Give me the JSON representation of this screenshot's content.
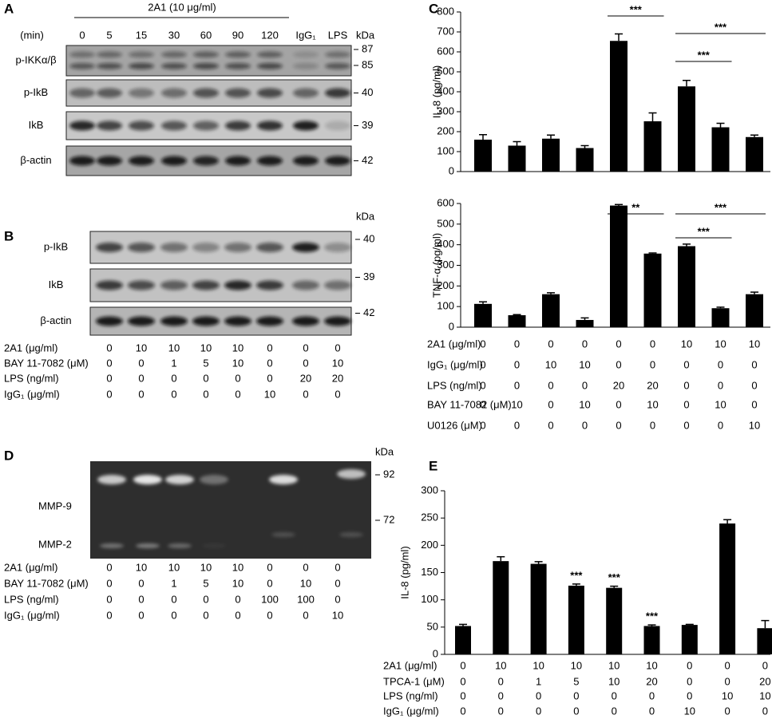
{
  "panel_a": {
    "label": "A",
    "header": "2A1 (10 μg/ml)",
    "time_label": "(min)",
    "lanes": [
      "0",
      "5",
      "15",
      "30",
      "60",
      "90",
      "120",
      "IgG₁",
      "LPS"
    ],
    "kda": "kDa",
    "rows": [
      {
        "name": "p-IKKα/β",
        "markers": [
          "87",
          "85"
        ]
      },
      {
        "name": "p-IkB",
        "markers": [
          "40"
        ]
      },
      {
        "name": "IkB",
        "markers": [
          "39"
        ]
      },
      {
        "name": "β-actin",
        "markers": [
          "42"
        ]
      }
    ]
  },
  "panel_b": {
    "label": "B",
    "kda": "kDa",
    "rows": [
      {
        "name": "p-IkB",
        "markers": [
          "40"
        ]
      },
      {
        "name": "IkB",
        "markers": [
          "39"
        ]
      },
      {
        "name": "β-actin",
        "markers": [
          "42"
        ]
      }
    ],
    "conditions": [
      {
        "name": "2A1 (μg/ml)",
        "values": [
          0,
          10,
          10,
          10,
          10,
          0,
          0,
          0
        ]
      },
      {
        "name": "BAY 11-7082 (μM)",
        "values": [
          0,
          0,
          1,
          5,
          10,
          0,
          0,
          10
        ]
      },
      {
        "name": "LPS (ng/ml)",
        "values": [
          0,
          0,
          0,
          0,
          0,
          0,
          20,
          20
        ]
      },
      {
        "name": "IgG₁ (μg/ml)",
        "values": [
          0,
          0,
          0,
          0,
          0,
          10,
          0,
          0
        ]
      }
    ]
  },
  "panel_c": {
    "label": "C",
    "conditions": [
      {
        "name": "2A1 (μg/ml)",
        "values": [
          0,
          0,
          0,
          0,
          0,
          0,
          10,
          10,
          10
        ]
      },
      {
        "name": "IgG₁ (μg/ml)",
        "values": [
          0,
          0,
          10,
          10,
          0,
          0,
          0,
          0,
          0
        ]
      },
      {
        "name": "LPS (ng/ml)",
        "values": [
          0,
          0,
          0,
          0,
          20,
          20,
          0,
          0,
          0
        ]
      },
      {
        "name": "BAY 11-7082 (μM)",
        "values": [
          0,
          10,
          0,
          10,
          0,
          10,
          0,
          10,
          0
        ]
      },
      {
        "name": "U0126 (μM)",
        "values": [
          0,
          0,
          0,
          0,
          0,
          0,
          0,
          0,
          10
        ]
      }
    ]
  },
  "panel_d": {
    "label": "D",
    "kda": "kDa",
    "bands": [
      "MMP-9",
      "MMP-2"
    ],
    "markers": [
      "92",
      "72"
    ],
    "conditions": [
      {
        "name": "2A1 (μg/ml)",
        "values": [
          0,
          10,
          10,
          10,
          10,
          0,
          0,
          0
        ]
      },
      {
        "name": "BAY 11-7082 (μM)",
        "values": [
          0,
          0,
          1,
          5,
          10,
          0,
          10,
          0
        ]
      },
      {
        "name": "LPS (ng/ml)",
        "values": [
          0,
          0,
          0,
          0,
          0,
          100,
          100,
          0
        ]
      },
      {
        "name": "IgG₁ (μg/ml)",
        "values": [
          0,
          0,
          0,
          0,
          0,
          0,
          0,
          10
        ]
      }
    ]
  },
  "panel_e": {
    "label": "E",
    "conditions": [
      {
        "name": "2A1 (μg/ml)",
        "values": [
          0,
          10,
          10,
          10,
          10,
          10,
          0,
          0,
          0
        ]
      },
      {
        "name": "TPCA-1 (μM)",
        "values": [
          0,
          0,
          1,
          5,
          10,
          20,
          0,
          0,
          20
        ]
      },
      {
        "name": "LPS (ng/ml)",
        "values": [
          0,
          0,
          0,
          0,
          0,
          0,
          0,
          10,
          10
        ]
      },
      {
        "name": "IgG₁ (μg/ml)",
        "values": [
          0,
          0,
          0,
          0,
          0,
          0,
          10,
          0,
          0
        ]
      }
    ]
  },
  "chart_data": [
    {
      "type": "bar",
      "ylabel": "IL-8 (pg/ml)",
      "categories": [
        null,
        null,
        null,
        null,
        null,
        null,
        null,
        null,
        null
      ],
      "values": [
        160,
        130,
        165,
        118,
        655,
        252,
        427,
        222,
        173
      ],
      "errors": [
        25,
        20,
        18,
        12,
        35,
        42,
        30,
        20,
        10
      ],
      "color": "#000000",
      "ylim": [
        0,
        800
      ],
      "yticks": [
        0,
        100,
        200,
        300,
        400,
        500,
        600,
        700,
        800
      ],
      "annotations": [
        "***",
        "***",
        "***"
      ]
    },
    {
      "type": "bar",
      "ylabel": "TNF-α (pg/ml)",
      "categories": [
        null,
        null,
        null,
        null,
        null,
        null,
        null,
        null,
        null
      ],
      "values": [
        113,
        58,
        160,
        35,
        590,
        357,
        393,
        92,
        160
      ],
      "errors": [
        10,
        3,
        7,
        10,
        5,
        3,
        10,
        5,
        10
      ],
      "color": "#000000",
      "ylim": [
        0,
        600
      ],
      "yticks": [
        0,
        100,
        200,
        300,
        400,
        500,
        600
      ],
      "annotations": [
        "**",
        "***",
        "***"
      ]
    },
    {
      "type": "bar",
      "ylabel": "IL-8 (pg/ml)",
      "categories": [
        null,
        null,
        null,
        null,
        null,
        null,
        null,
        null,
        null
      ],
      "values": [
        52,
        171,
        166,
        126,
        122,
        52,
        54,
        240,
        48
      ],
      "errors": [
        3,
        8,
        4,
        3,
        3,
        2,
        1,
        7,
        14
      ],
      "color": "#000000",
      "ylim": [
        0,
        300
      ],
      "yticks": [
        0,
        50,
        100,
        150,
        200,
        250,
        300
      ],
      "annotations": [
        "***",
        "***",
        "***"
      ]
    }
  ]
}
